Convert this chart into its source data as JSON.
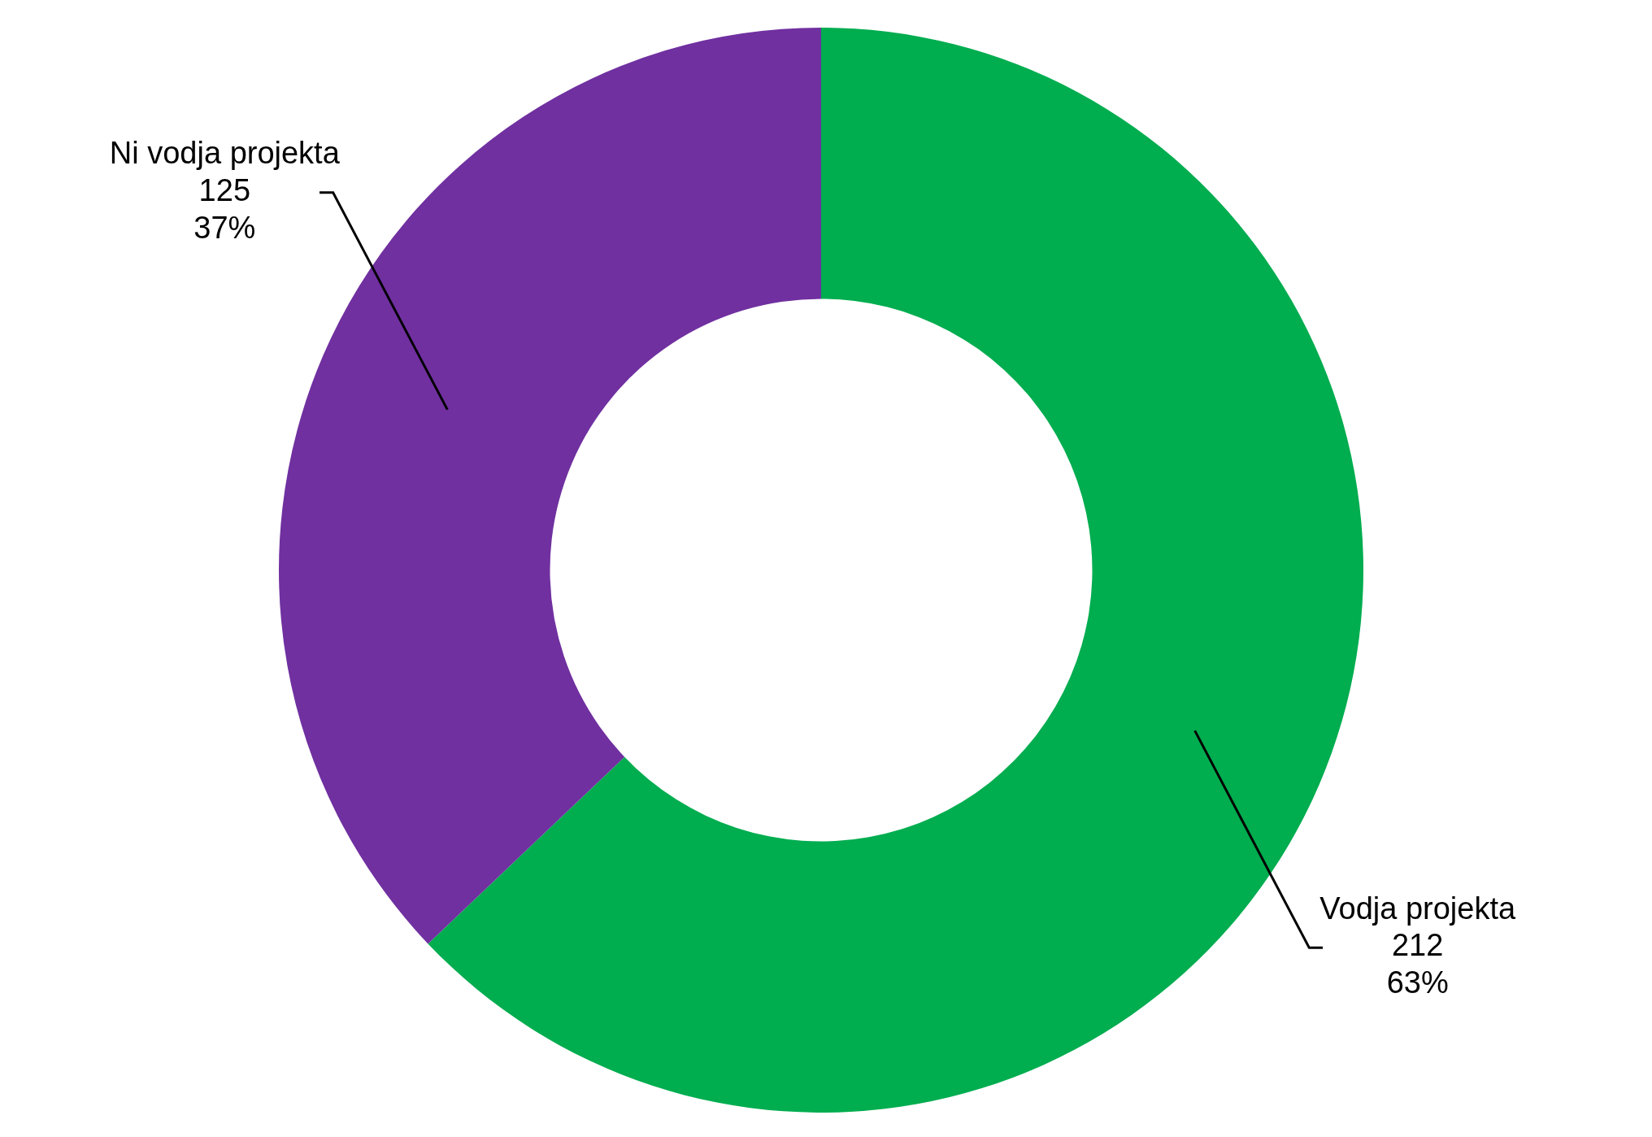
{
  "chart_data": {
    "type": "donut",
    "categories": [
      "Vodja projekta",
      "Ni vodja projekta"
    ],
    "values": [
      212,
      125
    ],
    "colors": [
      "#00ad4f",
      "#7030a0"
    ],
    "value_labels": [
      "212\n63%",
      "125\n37%"
    ]
  }
}
